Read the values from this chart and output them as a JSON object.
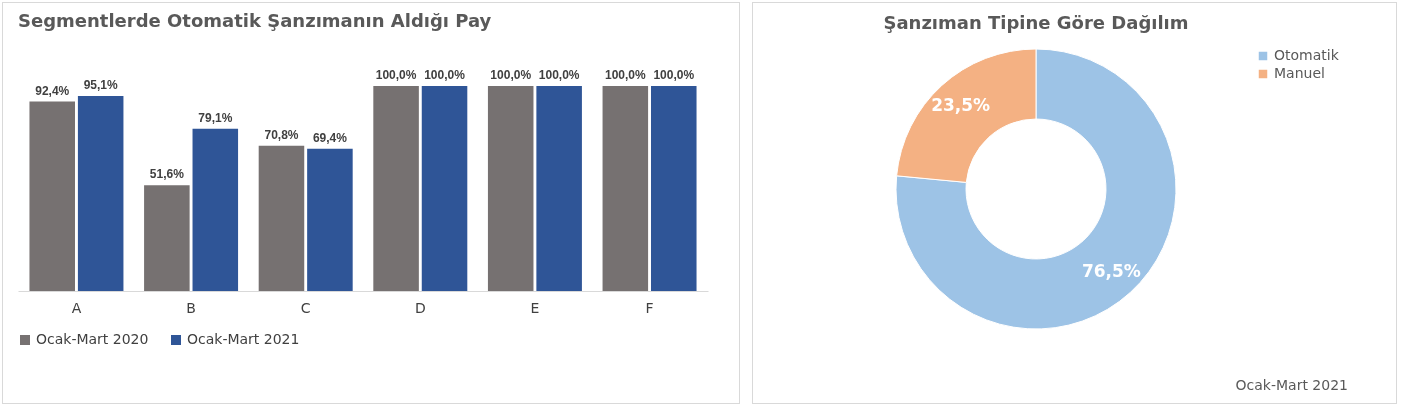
{
  "chart_data": [
    {
      "type": "bar",
      "title": "Segmentlerde Otomatik Şanzımanın Aldığı Pay",
      "categories": [
        "A",
        "B",
        "C",
        "D",
        "E",
        "F"
      ],
      "series": [
        {
          "name": "Ocak-Mart 2020",
          "color": "#767171",
          "values": [
            92.4,
            51.6,
            70.8,
            100,
            100,
            100
          ],
          "value_labels": [
            "92,4%",
            "51,6%",
            "70,8%",
            "100,0%",
            "100,0%",
            "100,0%"
          ]
        },
        {
          "name": "Ocak-Mart 2021",
          "color": "#2f5597",
          "values": [
            95.1,
            79.1,
            69.4,
            100,
            100,
            100
          ],
          "value_labels": [
            "95,1%",
            "79,1%",
            "69,4%",
            "100,0%",
            "100,0%",
            "100,0%"
          ]
        }
      ],
      "legend": "bottom",
      "grid": false
    },
    {
      "type": "donut",
      "title": "Şanzıman Tipine Göre Dağılım",
      "categories": [
        "Otomatik",
        "Manuel"
      ],
      "values": [
        76.5,
        23.5
      ],
      "colors": [
        "#9dc3e6",
        "#f4b183"
      ],
      "value_labels": [
        "76,5%",
        "23,5%"
      ],
      "legend": "right",
      "annotations": [
        "Ocak-Mart 2021"
      ]
    }
  ]
}
